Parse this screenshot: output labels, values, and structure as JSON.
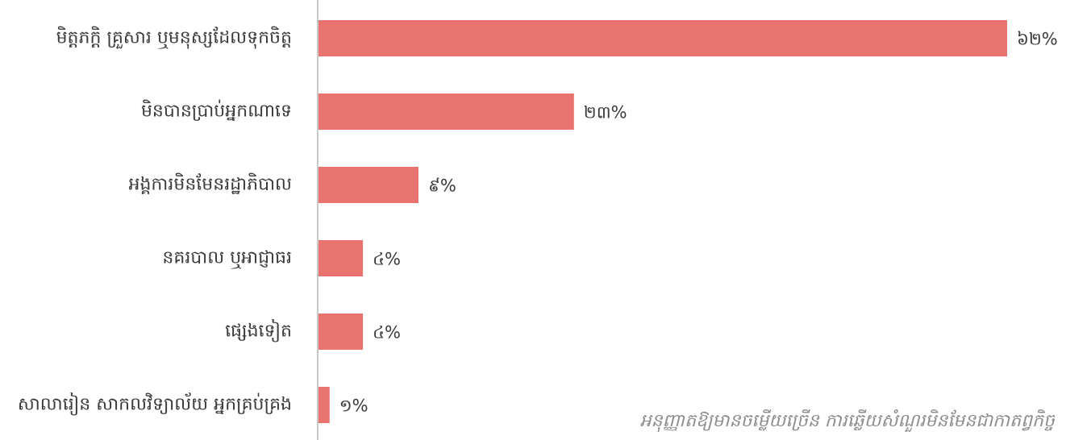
{
  "chart_data": {
    "type": "bar",
    "orientation": "horizontal",
    "categories": [
      "មិត្តភក្តិ គ្រួសារ ឬមនុស្សដែលទុកចិត្ត",
      "មិនបានប្រាប់អ្នកណាទេ",
      "អង្គការមិនមែនរដ្ឋាភិបាល",
      "នគរបាល ឬអាជ្ញាធរ",
      "ផ្សេងទៀត",
      "សាលារៀន សាកលវិទ្យាល័យ អ្នកគ្រប់គ្រង"
    ],
    "values": [
      62,
      23,
      9,
      4,
      4,
      1
    ],
    "value_labels": [
      "៦២%",
      "២៣%",
      "៩%",
      "៤%",
      "៤%",
      "១%"
    ],
    "xlim": [
      0,
      62
    ],
    "bar_color": "#e8736f",
    "axis_color": "#c8c8c8",
    "grid": false,
    "footnote": "អនុញ្ញាតឱ្យមានចម្លើយច្រើន ការឆ្លើយសំណួរមិនមែនជាកាតព្វកិច្ច"
  }
}
